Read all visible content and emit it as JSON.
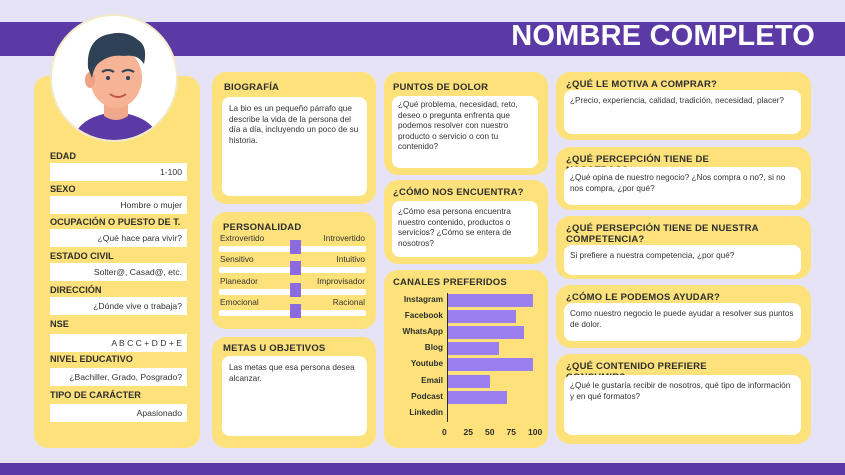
{
  "header": {
    "title": "NOMBRE COMPLETO"
  },
  "profile": {
    "fields": [
      {
        "label": "EDAD",
        "value": "1-100"
      },
      {
        "label": "SEXO",
        "value": "Hombre o mujer"
      },
      {
        "label": "OCUPACIÓN O PUESTO DE T.",
        "value": "¿Qué hace para vivir?"
      },
      {
        "label": "ESTADO CIVIL",
        "value": "Solter@,  Casad@, etc."
      },
      {
        "label": "DIRECCIÓN",
        "value": "¿Dónde vive o trabaja?"
      },
      {
        "label": "NSE",
        "value": "A B C C + D D + E"
      },
      {
        "label": "NIVEL EDUCATIVO",
        "value": "¿Bachiller, Grado, Posgrado?"
      },
      {
        "label": "TIPO DE CARÁCTER",
        "value": "Apasionado"
      }
    ]
  },
  "biografia": {
    "title": "BIOGRAFÍA",
    "text": "La bio es un pequeño párrafo que describe la vida de la persona del día a día, incluyendo un poco de su historia."
  },
  "personalidad": {
    "title": "PERSONALIDAD",
    "rows": [
      {
        "left": "Extrovertido",
        "right": "Introvertido",
        "level": 0.5
      },
      {
        "left": "Sensitivo",
        "right": "Intuitivo",
        "level": 0.5
      },
      {
        "left": "Planeador",
        "right": "Improvisador",
        "level": 0.5
      },
      {
        "left": "Emocional",
        "right": "Racional",
        "level": 0.5
      }
    ]
  },
  "metas": {
    "title": "METAS U OBJETIVOS",
    "text": "Las metas que esa persona desea alcanzar."
  },
  "puntos_dolor": {
    "title": "PUNTOS DE DOLOR",
    "text": "¿Qué problema, necesidad, reto, deseo o pregunta enfrenta que podemos resolver con nuestro producto o servicio o con tu contenido?"
  },
  "como_encuentra": {
    "title": "¿CÓMO NOS ENCUENTRA?",
    "text": "¿Cómo esa persona encuentra nuestro contenido, productos o servicios? ¿Cómo se entera de nosotros?"
  },
  "canales": {
    "title": "CANALES PREFERIDOS"
  },
  "chart_data": {
    "type": "bar",
    "orientation": "horizontal",
    "categories": [
      "Instagram",
      "Facebook",
      "WhatsApp",
      "Blog",
      "Youtube",
      "Email",
      "Podcast",
      "Linkedin"
    ],
    "values": [
      100,
      80,
      90,
      60,
      100,
      50,
      70,
      0
    ],
    "xticks": [
      "0",
      "25",
      "50",
      "75",
      "100"
    ],
    "xlim": [
      0,
      100
    ],
    "color": "#9a7ff0"
  },
  "right_col": [
    {
      "title": "¿QUÉ LE MOTIVA A COMPRAR?",
      "text": "¿Precio, experiencia, calidad, tradición, necesidad, placer?"
    },
    {
      "title": "¿QUÉ PERCEPCIÓN TIENE DE NOSOTROS?",
      "text": "¿Qué opina de nuestro negocio? ¿Nos compra o no?, si no nos compra, ¿por qué?"
    },
    {
      "title": "¿QUÉ PERSEPCIÓN TIENE DE NUESTRA COMPETENCIA?",
      "text": "Si prefiere a nuestra competencia, ¿por qué?"
    },
    {
      "title": "¿CÓMO LE PODEMOS AYUDAR?",
      "text": "Como nuestro negocio le puede ayudar a resolver sus puntos de dolor."
    },
    {
      "title": "¿QUÉ CONTENIDO PREFIERE CONSUMIR?",
      "text": "¿Qué le gustaría recibir de nosotros, qué tipo de información y en qué formatos?"
    }
  ],
  "colors": {
    "accent": "#5b3aa6",
    "card": "#fde27b",
    "bar": "#9a7ff0",
    "background": "#e6e3f7"
  }
}
